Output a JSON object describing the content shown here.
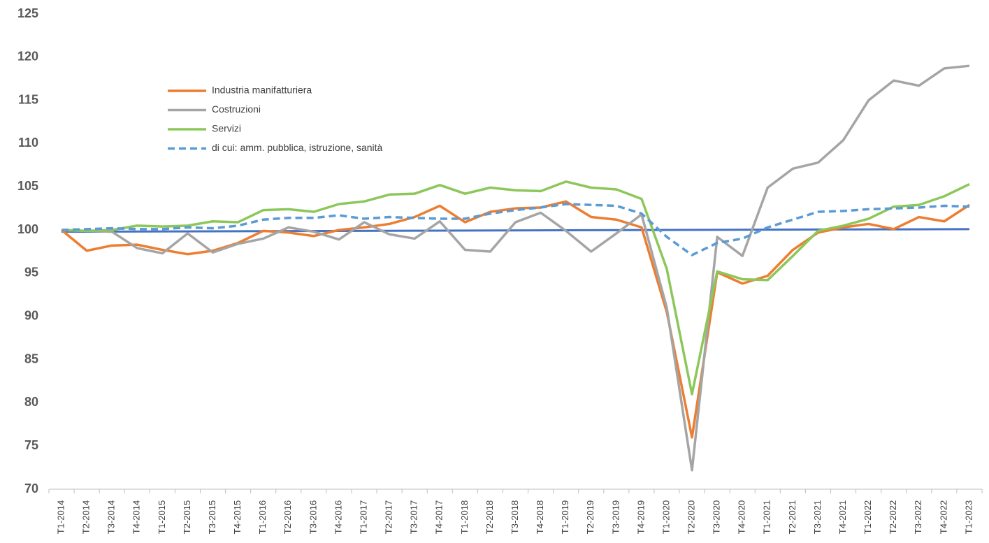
{
  "chart_data": {
    "type": "line",
    "categories": [
      "T1-2014",
      "T2-2014",
      "T3-2014",
      "T4-2014",
      "T1-2015",
      "T2-2015",
      "T3-2015",
      "T4-2015",
      "T1-2016",
      "T2-2016",
      "T3-2016",
      "T4-2016",
      "T1-2017",
      "T2-2017",
      "T3-2017",
      "T4-2017",
      "T1-2018",
      "T2-2018",
      "T3-2018",
      "T4-2018",
      "T1-2019",
      "T2-2019",
      "T3-2019",
      "T4-2019",
      "T1-2020",
      "T2-2020",
      "T3-2020",
      "T4-2020",
      "T1-2021",
      "T2-2021",
      "T3-2021",
      "T4-2021",
      "T1-2022",
      "T2-2022",
      "T3-2022",
      "T4-2022",
      "T1-2023"
    ],
    "series": [
      {
        "name": "Industria manifatturiera",
        "color": "#ed7d31",
        "values": [
          100,
          97.6,
          98.2,
          98.3,
          97.7,
          97.2,
          97.6,
          98.5,
          99.9,
          99.7,
          99.3,
          100.0,
          100.3,
          100.7,
          101.5,
          102.8,
          100.9,
          102.1,
          102.5,
          102.6,
          103.3,
          101.5,
          101.2,
          100.3,
          90.5,
          76.0,
          95.1,
          93.8,
          94.7,
          97.7,
          99.7,
          100.3,
          100.7,
          100.1,
          101.5,
          101.0,
          102.9
        ]
      },
      {
        "name": "Costruzioni",
        "color": "#a5a5a5",
        "values": [
          100,
          99.9,
          99.8,
          97.9,
          97.3,
          99.6,
          97.4,
          98.4,
          99.0,
          100.3,
          99.8,
          98.9,
          100.9,
          99.5,
          99.0,
          101.0,
          97.7,
          97.5,
          100.9,
          102.0,
          99.9,
          97.5,
          99.6,
          101.8,
          91.0,
          72.2,
          99.2,
          97.0,
          104.9,
          107.1,
          107.8,
          110.4,
          115.0,
          117.3,
          116.7,
          118.7,
          119.0
        ]
      },
      {
        "name": "Servizi",
        "color": "#8cc75a",
        "values": [
          100,
          99.9,
          100.0,
          100.5,
          100.4,
          100.5,
          101.0,
          100.9,
          102.3,
          102.4,
          102.1,
          103.0,
          103.3,
          104.1,
          104.2,
          105.2,
          104.2,
          104.9,
          104.6,
          104.5,
          105.6,
          104.9,
          104.7,
          103.6,
          95.5,
          81.0,
          95.2,
          94.3,
          94.2,
          97.0,
          99.9,
          100.5,
          101.3,
          102.7,
          102.9,
          103.9,
          105.3
        ]
      },
      {
        "name": " di cui: amm. pubblica, istruzione, sanità",
        "color": "#5b9bd5",
        "dashed": true,
        "values": [
          100,
          100.1,
          100.2,
          100.1,
          100.1,
          100.3,
          100.2,
          100.5,
          101.2,
          101.4,
          101.4,
          101.7,
          101.3,
          101.5,
          101.4,
          101.3,
          101.3,
          101.9,
          102.3,
          102.6,
          103.0,
          102.9,
          102.8,
          101.9,
          99.2,
          97.1,
          98.5,
          99.0,
          100.3,
          101.2,
          102.1,
          102.2,
          102.4,
          102.5,
          102.6,
          102.8,
          102.7
        ]
      }
    ],
    "baseline": {
      "color": "#4472c4",
      "values": [
        99.8,
        100.1
      ]
    },
    "ylim": [
      70,
      125
    ],
    "yticks": [
      70,
      75,
      80,
      85,
      90,
      95,
      100,
      105,
      110,
      115,
      120,
      125
    ],
    "grid": false
  }
}
